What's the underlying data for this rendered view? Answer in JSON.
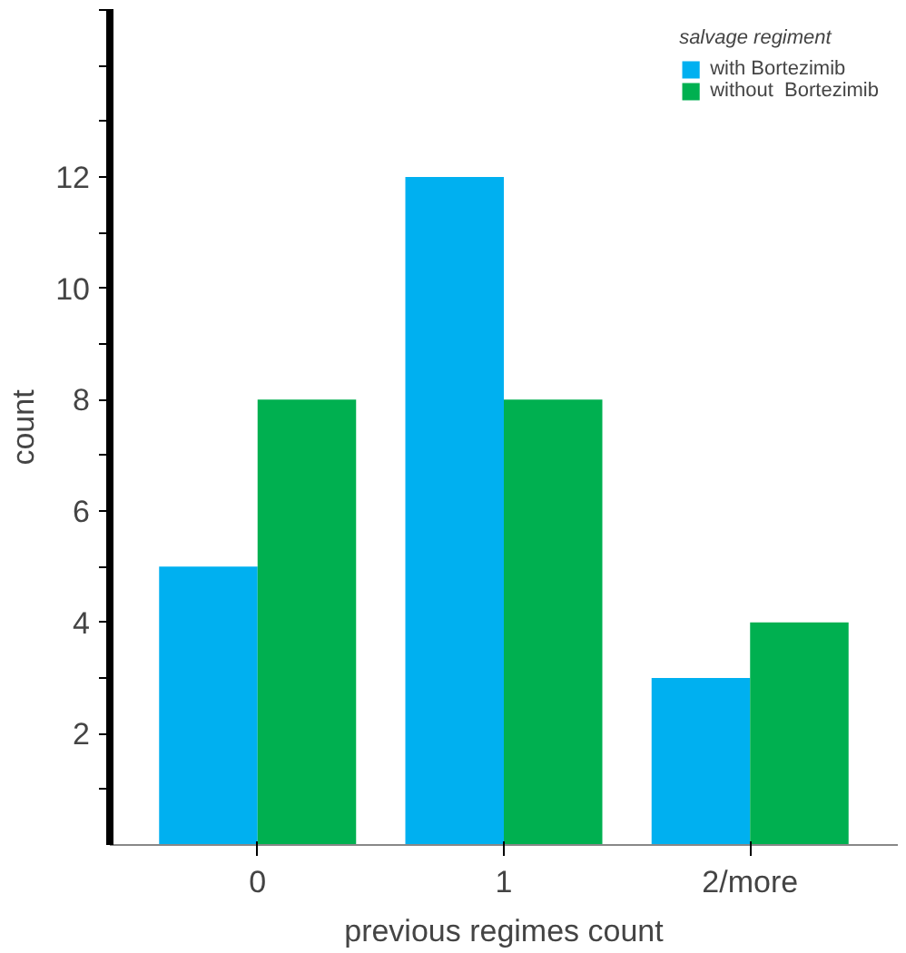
{
  "chart_data": {
    "type": "bar",
    "xlabel": "previous regimes count",
    "ylabel": "count",
    "legend_title": "salvage regiment",
    "categories": [
      "0",
      "1",
      "2/more"
    ],
    "series": [
      {
        "name": "with Bortezimib",
        "color": "#00b0f0",
        "values": [
          5,
          12,
          3
        ]
      },
      {
        "name": "without  Bortezimib",
        "color": "#00b050",
        "values": [
          8,
          8,
          4
        ]
      }
    ],
    "ylim": [
      0,
      15
    ],
    "yticks": [
      {
        "value": 1,
        "label": null
      },
      2,
      {
        "value": 3,
        "label": null
      },
      4,
      {
        "value": 5,
        "label": null
      },
      6,
      {
        "value": 7,
        "label": null
      },
      8,
      {
        "value": 9,
        "label": null
      },
      10,
      {
        "value": 11,
        "label": null
      },
      12,
      {
        "value": 13,
        "label": null
      },
      {
        "value": 14,
        "label": null
      },
      {
        "value": 15,
        "label": null
      }
    ],
    "grid": false,
    "legend": "top right"
  }
}
